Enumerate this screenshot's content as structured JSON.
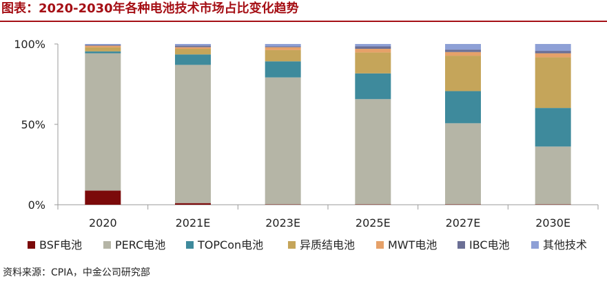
{
  "header": {
    "title": "图表：2020-2030年各种电池技术市场占比变化趋势"
  },
  "footer": {
    "source": "资料来源：CPIA，中金公司研究部"
  },
  "chart_data": {
    "type": "bar",
    "stacked": true,
    "title": "2020-2030年各种电池技术市场占比变化趋势",
    "categories": [
      "2020",
      "2021E",
      "2023E",
      "2025E",
      "2027E",
      "2030E"
    ],
    "yticks": [
      "100%",
      "50%",
      "0%"
    ],
    "ylim": [
      0,
      100
    ],
    "legend_position": "bottom",
    "series": [
      {
        "name": "BSF电池",
        "color": "#7b0a0a",
        "values": [
          8.8,
          1.0,
          0.2,
          0.2,
          0.2,
          0.2
        ]
      },
      {
        "name": "PERC电池",
        "color": "#b5b5a6",
        "values": [
          85.4,
          86.0,
          79.0,
          65.5,
          50.5,
          36.0
        ]
      },
      {
        "name": "TOPCon电池",
        "color": "#3e8a9c",
        "values": [
          1.2,
          6.5,
          10.0,
          16.0,
          20.0,
          24.0
        ]
      },
      {
        "name": "异质结电池",
        "color": "#c5a55a",
        "values": [
          2.5,
          3.5,
          7.0,
          13.0,
          22.0,
          31.5
        ]
      },
      {
        "name": "MWT电池",
        "color": "#e6a169",
        "values": [
          1.0,
          1.0,
          1.8,
          2.3,
          2.3,
          2.5
        ]
      },
      {
        "name": "IBC电池",
        "color": "#6b6f95",
        "values": [
          0.5,
          1.0,
          0.5,
          1.5,
          1.5,
          1.5
        ]
      },
      {
        "name": "其他技术",
        "color": "#8ea0d6",
        "values": [
          0.6,
          1.0,
          1.5,
          1.5,
          3.5,
          4.3
        ]
      }
    ]
  }
}
